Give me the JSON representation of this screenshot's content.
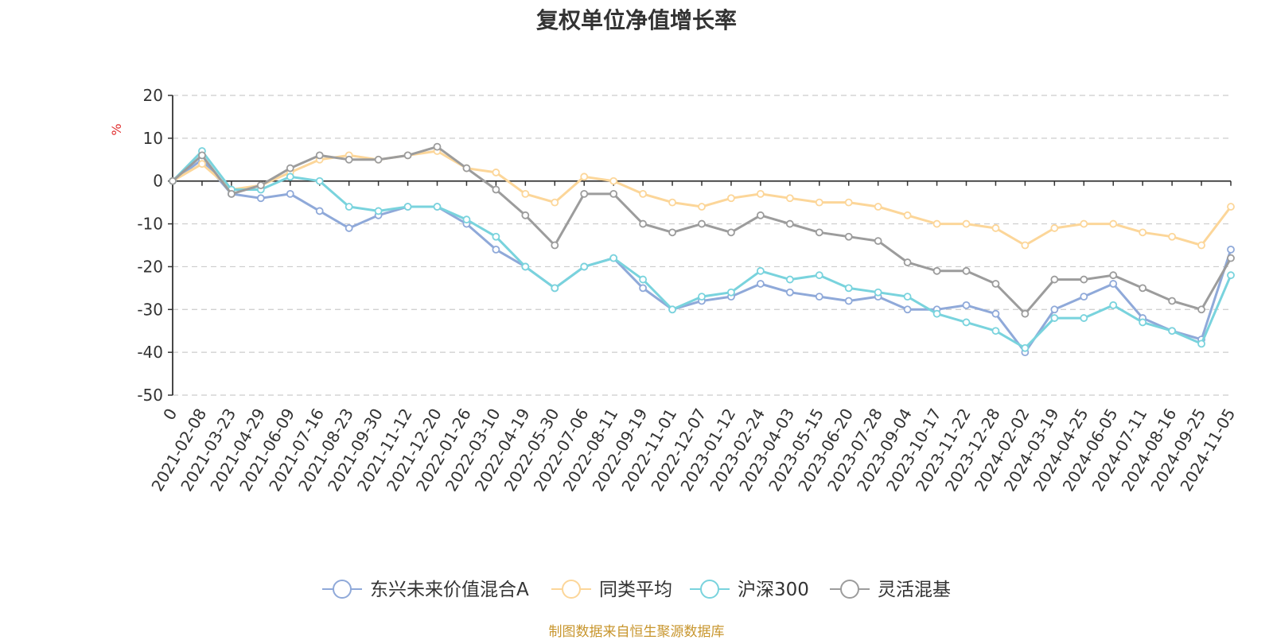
{
  "footer": "制图数据来自恒生聚源数据库",
  "chart_data": {
    "type": "line",
    "title": "复权单位净值增长率",
    "ylabel": "%",
    "ylim": [
      -50,
      20
    ],
    "yticks": [
      20,
      10,
      0,
      -10,
      -20,
      -30,
      -40,
      -50
    ],
    "grid": true,
    "legend_position": "bottom",
    "categories": [
      "0",
      "2021-02-08",
      "2021-03-23",
      "2021-04-29",
      "2021-06-09",
      "2021-07-16",
      "2021-08-23",
      "2021-09-30",
      "2021-11-12",
      "2021-12-20",
      "2022-01-26",
      "2022-03-10",
      "2022-04-19",
      "2022-05-30",
      "2022-07-06",
      "2022-08-11",
      "2022-09-19",
      "2022-11-01",
      "2022-12-07",
      "2023-01-12",
      "2023-02-24",
      "2023-04-03",
      "2023-05-15",
      "2023-06-20",
      "2023-07-28",
      "2023-09-04",
      "2023-10-17",
      "2023-11-22",
      "2023-12-28",
      "2024-02-02",
      "2024-03-19",
      "2024-04-25",
      "2024-06-05",
      "2024-07-11",
      "2024-08-16",
      "2024-09-25",
      "2024-11-05"
    ],
    "series": [
      {
        "name": "东兴未来价值混合A",
        "color": "#8fa9d9",
        "values": [
          0,
          5,
          -3,
          -4,
          -3,
          -7,
          -11,
          -8,
          -6,
          -6,
          -10,
          -16,
          -20,
          -25,
          -20,
          -18,
          -25,
          -30,
          -28,
          -27,
          -24,
          -26,
          -27,
          -28,
          -27,
          -30,
          -30,
          -29,
          -31,
          -40,
          -30,
          -27,
          -24,
          -32,
          -35,
          -37,
          -16
        ]
      },
      {
        "name": "同类平均",
        "color": "#fcd699",
        "values": [
          0,
          4,
          -2,
          -1,
          2,
          5,
          6,
          5,
          6,
          7,
          3,
          2,
          -3,
          -5,
          1,
          0,
          -3,
          -5,
          -6,
          -4,
          -3,
          -4,
          -5,
          -5,
          -6,
          -8,
          -10,
          -10,
          -11,
          -15,
          -11,
          -10,
          -10,
          -12,
          -13,
          -15,
          -6
        ]
      },
      {
        "name": "沪深300",
        "color": "#79d3dd",
        "values": [
          0,
          7,
          -2,
          -2,
          1,
          0,
          -6,
          -7,
          -6,
          -6,
          -9,
          -13,
          -20,
          -25,
          -20,
          -18,
          -23,
          -30,
          -27,
          -26,
          -21,
          -23,
          -22,
          -25,
          -26,
          -27,
          -31,
          -33,
          -35,
          -39,
          -32,
          -32,
          -29,
          -33,
          -35,
          -38,
          -22
        ]
      },
      {
        "name": "灵活混基",
        "color": "#9c9c9c",
        "values": [
          0,
          6,
          -3,
          -1,
          3,
          6,
          5,
          5,
          6,
          8,
          3,
          -2,
          -8,
          -15,
          -3,
          -3,
          -10,
          -12,
          -10,
          -12,
          -8,
          -10,
          -12,
          -13,
          -14,
          -19,
          -21,
          -21,
          -24,
          -31,
          -23,
          -23,
          -22,
          -25,
          -28,
          -30,
          -18
        ]
      }
    ]
  }
}
